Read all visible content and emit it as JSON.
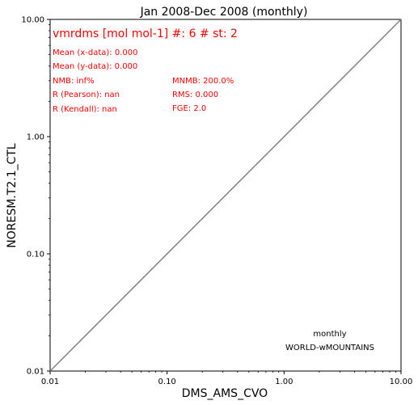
{
  "chart_data": {
    "type": "scatter",
    "title": "Jan 2008-Dec 2008 (monthly)",
    "xlabel": "DMS_AMS_CVO",
    "ylabel": "NORESM.T2.1_CTL",
    "xscale": "log",
    "yscale": "log",
    "xlim": [
      0.01,
      10.0
    ],
    "ylim": [
      0.01,
      10.0
    ],
    "x_tick_labels": [
      "0.01",
      "0.10",
      "1.00",
      "10.00"
    ],
    "y_tick_labels": [
      "0.01",
      "0.10",
      "1.00",
      "10.00"
    ],
    "x_ticks": [
      0.01,
      0.1,
      1.0,
      10.0
    ],
    "y_ticks": [
      0.01,
      0.1,
      1.0,
      10.0
    ],
    "grid": false,
    "points": [],
    "reference_line": {
      "x": [
        0.01,
        10.0
      ],
      "y": [
        0.01,
        10.0
      ],
      "color": "#808080"
    },
    "annotation_color": "#ff0000",
    "annotations": {
      "header": "vmrdms [mol mol-1] #: 6 # st: 2",
      "left": [
        "Mean (x-data): 0.000",
        "Mean (y-data): 0.000",
        "NMB: inf%",
        "R (Pearson): nan",
        "R (Kendall): nan"
      ],
      "right": [
        "MNMB: 200.0%",
        "RMS: 0.000",
        "FGE: 2.0"
      ]
    },
    "info_box": [
      "monthly",
      "WORLD-wMOUNTAINS"
    ]
  }
}
